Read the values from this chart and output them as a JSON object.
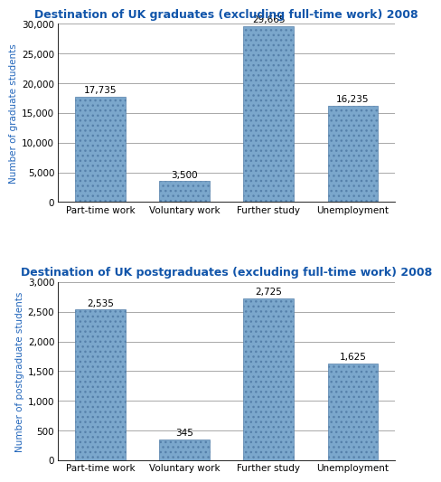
{
  "chart1": {
    "title": "Destination of UK graduates (excluding full-time work) 2008",
    "categories": [
      "Part-time work",
      "Voluntary work",
      "Further study",
      "Unemployment"
    ],
    "values": [
      17735,
      3500,
      29665,
      16235
    ],
    "labels": [
      "17,735",
      "3,500",
      "29,665",
      "16,235"
    ],
    "ylabel": "Number of graduate students",
    "ylim": [
      0,
      30000
    ],
    "yticks": [
      0,
      5000,
      10000,
      15000,
      20000,
      25000,
      30000
    ],
    "ytick_labels": [
      "0",
      "5,000",
      "10,000",
      "15,000",
      "20,000",
      "25,000",
      "30,000"
    ]
  },
  "chart2": {
    "title": "Destination of UK postgraduates (excluding full-time work) 2008",
    "categories": [
      "Part-time work",
      "Voluntary work",
      "Further study",
      "Unemployment"
    ],
    "values": [
      2535,
      345,
      2725,
      1625
    ],
    "labels": [
      "2,535",
      "345",
      "2,725",
      "1,625"
    ],
    "ylabel": "Number of postgraduate students",
    "ylim": [
      0,
      3000
    ],
    "yticks": [
      0,
      500,
      1000,
      1500,
      2000,
      2500,
      3000
    ],
    "ytick_labels": [
      "0",
      "500",
      "1,000",
      "1,500",
      "2,000",
      "2,500",
      "3,000"
    ]
  },
  "bar_color": "#7BA7CC",
  "bar_edge_color": "#5580AA",
  "title_color": "#1155AA",
  "ylabel_color": "#2266BB",
  "background_color": "#FFFFFF",
  "title_fontsize": 9.0,
  "label_fontsize": 7.5,
  "tick_fontsize": 7.5,
  "ylabel_fontsize": 7.5
}
